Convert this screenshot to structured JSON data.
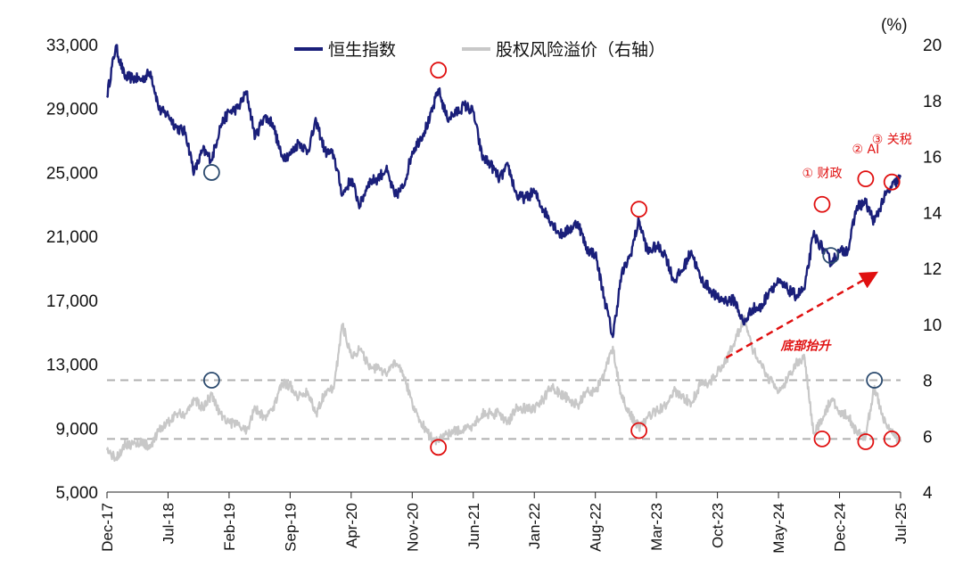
{
  "chart_data": {
    "type": "line",
    "title": "",
    "legend": {
      "placement": "top-center",
      "entries": [
        {
          "name": "恒生指数",
          "color": "#1a1f7a"
        },
        {
          "name": "股权风险溢价（右轴）",
          "color": "#c8c8c8"
        }
      ]
    },
    "x_ticks": [
      "Dec-17",
      "Jul-18",
      "Feb-19",
      "Sep-19",
      "Apr-20",
      "Nov-20",
      "Jun-21",
      "Jan-22",
      "Aug-22",
      "Mar-23",
      "Oct-23",
      "May-24",
      "Dec-24",
      "Jul-25"
    ],
    "y_left": {
      "ticks": [
        "5,000",
        "9,000",
        "13,000",
        "17,000",
        "21,000",
        "25,000",
        "29,000",
        "33,000"
      ],
      "range": [
        5000,
        33000
      ]
    },
    "y_right": {
      "unit": "(%)",
      "ticks": [
        "4",
        "6",
        "8",
        "10",
        "12",
        "14",
        "16",
        "18",
        "20"
      ],
      "range": [
        4,
        20
      ]
    },
    "series": [
      {
        "name": "恒生指数",
        "axis": "left",
        "color": "#1a1f7a",
        "points": [
          [
            "2017-12",
            29800
          ],
          [
            "2018-01",
            32900
          ],
          [
            "2018-02",
            31000
          ],
          [
            "2018-03",
            30900
          ],
          [
            "2018-04",
            30800
          ],
          [
            "2018-05",
            31300
          ],
          [
            "2018-06",
            28900
          ],
          [
            "2018-07",
            28600
          ],
          [
            "2018-08",
            27800
          ],
          [
            "2018-09",
            27500
          ],
          [
            "2018-10",
            25000
          ],
          [
            "2018-11",
            26400
          ],
          [
            "2018-12",
            25800
          ],
          [
            "2019-01",
            27900
          ],
          [
            "2019-02",
            28800
          ],
          [
            "2019-03",
            29000
          ],
          [
            "2019-04",
            30000
          ],
          [
            "2019-05",
            27200
          ],
          [
            "2019-06",
            28500
          ],
          [
            "2019-07",
            28100
          ],
          [
            "2019-08",
            26000
          ],
          [
            "2019-09",
            26100
          ],
          [
            "2019-10",
            26900
          ],
          [
            "2019-11",
            26300
          ],
          [
            "2019-12",
            28200
          ],
          [
            "2020-01",
            26300
          ],
          [
            "2020-02",
            26100
          ],
          [
            "2020-03",
            23600
          ],
          [
            "2020-04",
            24600
          ],
          [
            "2020-05",
            22900
          ],
          [
            "2020-06",
            24400
          ],
          [
            "2020-07",
            24600
          ],
          [
            "2020-08",
            25200
          ],
          [
            "2020-09",
            23500
          ],
          [
            "2020-10",
            24100
          ],
          [
            "2020-11",
            26300
          ],
          [
            "2020-12",
            27200
          ],
          [
            "2021-01",
            28300
          ],
          [
            "2021-02",
            30200
          ],
          [
            "2021-03",
            28400
          ],
          [
            "2021-04",
            28700
          ],
          [
            "2021-05",
            29200
          ],
          [
            "2021-06",
            28800
          ],
          [
            "2021-07",
            26000
          ],
          [
            "2021-08",
            25500
          ],
          [
            "2021-09",
            24600
          ],
          [
            "2021-10",
            25400
          ],
          [
            "2021-11",
            23500
          ],
          [
            "2021-12",
            23400
          ],
          [
            "2022-01",
            23800
          ],
          [
            "2022-02",
            22700
          ],
          [
            "2022-03",
            21900
          ],
          [
            "2022-04",
            21100
          ],
          [
            "2022-05",
            21400
          ],
          [
            "2022-06",
            21900
          ],
          [
            "2022-07",
            20200
          ],
          [
            "2022-08",
            19900
          ],
          [
            "2022-09",
            17200
          ],
          [
            "2022-10",
            14700
          ],
          [
            "2022-11",
            18600
          ],
          [
            "2022-12",
            19800
          ],
          [
            "2023-01",
            22000
          ],
          [
            "2023-02",
            20000
          ],
          [
            "2023-03",
            20400
          ],
          [
            "2023-04",
            19900
          ],
          [
            "2023-05",
            18200
          ],
          [
            "2023-06",
            18900
          ],
          [
            "2023-07",
            20100
          ],
          [
            "2023-08",
            18400
          ],
          [
            "2023-09",
            17800
          ],
          [
            "2023-10",
            17100
          ],
          [
            "2023-11",
            17000
          ],
          [
            "2023-12",
            17000
          ],
          [
            "2024-01",
            15500
          ],
          [
            "2024-02",
            16500
          ],
          [
            "2024-03",
            16500
          ],
          [
            "2024-04",
            17700
          ],
          [
            "2024-05",
            18100
          ],
          [
            "2024-06",
            17700
          ],
          [
            "2024-07",
            17300
          ],
          [
            "2024-08",
            17700
          ],
          [
            "2024-09",
            21100
          ],
          [
            "2024-10",
            20300
          ],
          [
            "2024-11",
            19400
          ],
          [
            "2024-12",
            20000
          ],
          [
            "2025-01",
            20200
          ],
          [
            "2025-02",
            22900
          ],
          [
            "2025-03",
            23100
          ],
          [
            "2025-04",
            21900
          ],
          [
            "2025-05",
            23300
          ],
          [
            "2025-06",
            24100
          ],
          [
            "2025-07",
            24700
          ]
        ]
      },
      {
        "name": "股权风险溢价（右轴）",
        "axis": "right",
        "color": "#c8c8c8",
        "points": [
          [
            "2017-12",
            5.5
          ],
          [
            "2018-01",
            5.2
          ],
          [
            "2018-02",
            5.7
          ],
          [
            "2018-03",
            5.7
          ],
          [
            "2018-04",
            5.8
          ],
          [
            "2018-05",
            5.6
          ],
          [
            "2018-06",
            6.2
          ],
          [
            "2018-07",
            6.5
          ],
          [
            "2018-08",
            6.8
          ],
          [
            "2018-09",
            6.8
          ],
          [
            "2018-10",
            7.3
          ],
          [
            "2018-11",
            7.0
          ],
          [
            "2018-12",
            7.5
          ],
          [
            "2019-01",
            6.8
          ],
          [
            "2019-02",
            6.5
          ],
          [
            "2019-03",
            6.4
          ],
          [
            "2019-04",
            6.2
          ],
          [
            "2019-05",
            7.0
          ],
          [
            "2019-06",
            6.7
          ],
          [
            "2019-07",
            6.9
          ],
          [
            "2019-08",
            7.9
          ],
          [
            "2019-09",
            7.8
          ],
          [
            "2019-10",
            7.4
          ],
          [
            "2019-11",
            7.6
          ],
          [
            "2019-12",
            6.8
          ],
          [
            "2020-01",
            7.6
          ],
          [
            "2020-02",
            7.7
          ],
          [
            "2020-03",
            10.0
          ],
          [
            "2020-04",
            8.9
          ],
          [
            "2020-05",
            9.1
          ],
          [
            "2020-06",
            8.5
          ],
          [
            "2020-07",
            8.4
          ],
          [
            "2020-08",
            8.2
          ],
          [
            "2020-09",
            8.7
          ],
          [
            "2020-10",
            8.2
          ],
          [
            "2020-11",
            7.2
          ],
          [
            "2020-12",
            6.5
          ],
          [
            "2021-01",
            6.0
          ],
          [
            "2021-02",
            5.8
          ],
          [
            "2021-03",
            6.1
          ],
          [
            "2021-04",
            6.2
          ],
          [
            "2021-05",
            6.2
          ],
          [
            "2021-06",
            6.4
          ],
          [
            "2021-07",
            6.8
          ],
          [
            "2021-08",
            6.8
          ],
          [
            "2021-09",
            6.8
          ],
          [
            "2021-10",
            6.5
          ],
          [
            "2021-11",
            7.0
          ],
          [
            "2021-12",
            7.0
          ],
          [
            "2022-01",
            7.0
          ],
          [
            "2022-02",
            7.3
          ],
          [
            "2022-03",
            7.8
          ],
          [
            "2022-04",
            7.5
          ],
          [
            "2022-05",
            7.3
          ],
          [
            "2022-06",
            7.1
          ],
          [
            "2022-07",
            7.6
          ],
          [
            "2022-08",
            7.6
          ],
          [
            "2022-09",
            8.2
          ],
          [
            "2022-10",
            9.2
          ],
          [
            "2022-11",
            7.4
          ],
          [
            "2022-12",
            6.8
          ],
          [
            "2023-01",
            6.3
          ],
          [
            "2023-02",
            6.7
          ],
          [
            "2023-03",
            6.9
          ],
          [
            "2023-04",
            7.1
          ],
          [
            "2023-05",
            7.6
          ],
          [
            "2023-06",
            7.4
          ],
          [
            "2023-07",
            7.2
          ],
          [
            "2023-08",
            7.8
          ],
          [
            "2023-09",
            7.9
          ],
          [
            "2023-10",
            8.3
          ],
          [
            "2023-11",
            8.7
          ],
          [
            "2023-12",
            9.4
          ],
          [
            "2024-01",
            10.2
          ],
          [
            "2024-02",
            9.1
          ],
          [
            "2024-03",
            8.6
          ],
          [
            "2024-04",
            8.0
          ],
          [
            "2024-05",
            7.6
          ],
          [
            "2024-06",
            8.0
          ],
          [
            "2024-07",
            8.6
          ],
          [
            "2024-08",
            8.8
          ],
          [
            "2024-09",
            6.1
          ],
          [
            "2024-10",
            6.6
          ],
          [
            "2024-11",
            7.3
          ],
          [
            "2024-12",
            6.9
          ],
          [
            "2025-01",
            6.7
          ],
          [
            "2025-02",
            6.1
          ],
          [
            "2025-03",
            6.0
          ],
          [
            "2025-04",
            7.8
          ],
          [
            "2025-05",
            6.6
          ],
          [
            "2025-06",
            6.1
          ],
          [
            "2025-07",
            5.8
          ]
        ]
      }
    ],
    "reference_lines": [
      {
        "axis": "right",
        "value": 8.0,
        "style": "dashed",
        "color": "#b0b0b0"
      },
      {
        "axis": "right",
        "value": 5.9,
        "style": "dashed",
        "color": "#b0b0b0"
      }
    ],
    "markers": [
      {
        "series": "恒生指数",
        "date": "2018-12",
        "value": 25000,
        "color": "#2b4a6e"
      },
      {
        "series": "恒生指数",
        "date": "2021-02",
        "value": 31400,
        "color": "#e01010"
      },
      {
        "series": "恒生指数",
        "date": "2023-01",
        "value": 22700,
        "color": "#e01010"
      },
      {
        "series": "恒生指数",
        "date": "2024-10",
        "value": 23000,
        "color": "#e01010"
      },
      {
        "series": "恒生指数",
        "date": "2024-11",
        "value": 19800,
        "color": "#2b4a6e"
      },
      {
        "series": "恒生指数",
        "date": "2025-03",
        "value": 24600,
        "color": "#e01010"
      },
      {
        "series": "恒生指数",
        "date": "2025-06",
        "value": 24400,
        "color": "#e01010"
      },
      {
        "series": "股权风险溢价（右轴）",
        "date": "2018-12",
        "value": 8.0,
        "color": "#2b4a6e"
      },
      {
        "series": "股权风险溢价（右轴）",
        "date": "2021-02",
        "value": 5.6,
        "color": "#e01010"
      },
      {
        "series": "股权风险溢价（右轴）",
        "date": "2023-01",
        "value": 6.2,
        "color": "#e01010"
      },
      {
        "series": "股权风险溢价（右轴）",
        "date": "2024-10",
        "value": 5.9,
        "color": "#e01010"
      },
      {
        "series": "股权风险溢价（右轴）",
        "date": "2025-04",
        "value": 8.0,
        "color": "#2b4a6e"
      },
      {
        "series": "股权风险溢价（右轴）",
        "date": "2025-03",
        "value": 5.8,
        "color": "#e01010"
      },
      {
        "series": "股权风险溢价（右轴）",
        "date": "2025-06",
        "value": 5.9,
        "color": "#e01010"
      }
    ],
    "annotations": [
      {
        "text": "① 财政",
        "date": "2024-10",
        "value": 24700,
        "axis": "left"
      },
      {
        "text": "② AI",
        "date": "2025-03",
        "value": 26200,
        "axis": "left"
      },
      {
        "text": "③ 关税",
        "date": "2025-06",
        "value": 26800,
        "axis": "left"
      }
    ],
    "trend_arrow": {
      "label": "底部抬升",
      "from": {
        "date": "2023-11",
        "value": 8.8,
        "axis": "right"
      },
      "to": {
        "date": "2025-04",
        "value": 11.8,
        "axis": "right"
      },
      "color": "#e01010"
    },
    "grid": false
  }
}
